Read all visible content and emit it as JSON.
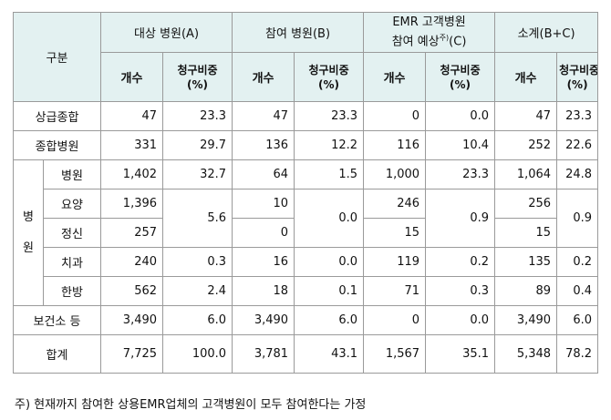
{
  "table": {
    "header": {
      "category": "구분",
      "groups": [
        {
          "label": "대상 병원(A)"
        },
        {
          "label": "참여 병원(B)"
        },
        {
          "label_line1": "EMR 고객병원",
          "label_line2": "참여 예상",
          "label_sup": "주)",
          "label_tail": "(C)"
        },
        {
          "label": "소계(B+C)"
        }
      ],
      "count": "개수",
      "share_line1": "청구비중",
      "share_line2": "(%)"
    },
    "rows": {
      "sangup": {
        "label": "상급종합",
        "a_count": "47",
        "a_share": "23.3",
        "b_count": "47",
        "b_share": "23.3",
        "c_count": "0",
        "c_share": "0.0",
        "s_count": "47",
        "s_share": "23.3"
      },
      "jonghap": {
        "label": "종합병원",
        "a_count": "331",
        "a_share": "29.7",
        "b_count": "136",
        "b_share": "12.2",
        "c_count": "116",
        "c_share": "10.4",
        "s_count": "252",
        "s_share": "22.6"
      },
      "group_label": [
        "병",
        "원"
      ],
      "byeongwon": {
        "label": "병원",
        "a_count": "1,402",
        "a_share": "32.7",
        "b_count": "64",
        "b_share": "1.5",
        "c_count": "1,000",
        "c_share": "23.3",
        "s_count": "1,064",
        "s_share": "24.8"
      },
      "yoyang": {
        "label": "요양",
        "a_count": "1,396",
        "b_count": "10",
        "c_count": "246",
        "s_count": "256"
      },
      "jeongsin": {
        "label": "정신",
        "a_count": "257",
        "b_count": "0",
        "c_count": "15",
        "s_count": "15"
      },
      "merged_share": {
        "a": "5.6",
        "b": "0.0",
        "c": "0.9",
        "s": "0.9"
      },
      "chigwa": {
        "label": "치과",
        "a_count": "240",
        "a_share": "0.3",
        "b_count": "16",
        "b_share": "0.0",
        "c_count": "119",
        "c_share": "0.2",
        "s_count": "135",
        "s_share": "0.2"
      },
      "hanbang": {
        "label": "한방",
        "a_count": "562",
        "a_share": "2.4",
        "b_count": "18",
        "b_share": "0.1",
        "c_count": "71",
        "c_share": "0.3",
        "s_count": "89",
        "s_share": "0.4"
      },
      "bogeonso": {
        "label": "보건소 등",
        "a_count": "3,490",
        "a_share": "6.0",
        "b_count": "3,490",
        "b_share": "6.0",
        "c_count": "0",
        "c_share": "0.0",
        "s_count": "3,490",
        "s_share": "6.0"
      },
      "total": {
        "label": "합계",
        "a_count": "7,725",
        "a_share": "100.0",
        "b_count": "3,781",
        "b_share": "43.1",
        "c_count": "1,567",
        "c_share": "35.1",
        "s_count": "5,348",
        "s_share": "78.2"
      }
    }
  },
  "footnote": "주) 현재까지 참여한 상용EMR업체의 고객병원이 모두 참여한다는 가정"
}
